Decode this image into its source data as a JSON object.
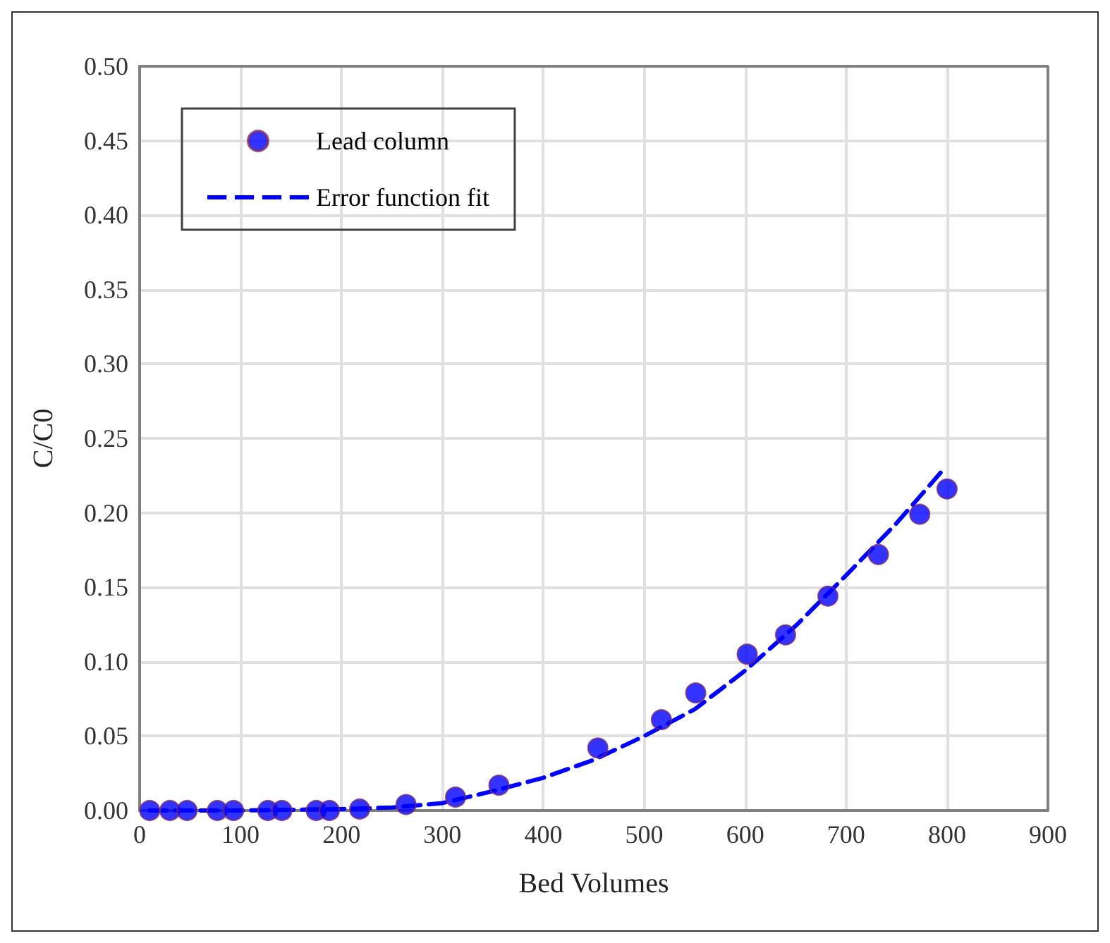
{
  "chart_data": {
    "type": "scatter",
    "xlabel": "Bed Volumes",
    "ylabel": "C/C0",
    "xlim": [
      0,
      900
    ],
    "xticks": [
      0,
      100,
      200,
      300,
      400,
      500,
      600,
      700,
      800,
      900
    ],
    "ylim": [
      0,
      0.5
    ],
    "yticks": [
      {
        "value": 0,
        "label": "0.00"
      },
      {
        "value": 0.05,
        "label": "0.05"
      },
      {
        "value": 0.1,
        "label": "0.10"
      },
      {
        "value": 0.15,
        "label": "0.15"
      },
      {
        "value": 0.2,
        "label": "0.20"
      },
      {
        "value": 0.25,
        "label": "0.25"
      },
      {
        "value": 0.3,
        "label": "0.30"
      },
      {
        "value": 0.35,
        "label": "0.35"
      },
      {
        "value": 0.4,
        "label": "0.40"
      },
      {
        "value": 0.45,
        "label": "0.45"
      },
      {
        "value": 0.5,
        "label": "0.50"
      }
    ],
    "grid": true,
    "legend": "top left",
    "series": [
      {
        "name": "Lead column",
        "color": "#0000ff",
        "marker": "circle",
        "x": [
          10,
          30,
          47,
          77,
          93,
          127,
          141,
          175,
          188,
          218,
          264,
          313,
          356,
          454,
          517,
          551,
          602,
          640,
          682,
          732,
          773,
          800
        ],
        "values": [
          0,
          0,
          0,
          0,
          0,
          0,
          0,
          0,
          0,
          0.001,
          0.004,
          0.009,
          0.017,
          0.042,
          0.061,
          0.079,
          0.105,
          0.118,
          0.144,
          0.172,
          0.199,
          0.216
        ]
      },
      {
        "name": "Error function fit",
        "type": "line",
        "color": "#0000ff",
        "line_style": "dashed",
        "marker": "none",
        "x": [
          10,
          100,
          200,
          250,
          300,
          350,
          400,
          450,
          500,
          550,
          600,
          650,
          700,
          750,
          795
        ],
        "values": [
          0,
          0,
          0.001,
          0.002,
          0.005,
          0.013,
          0.022,
          0.034,
          0.05,
          0.068,
          0.094,
          0.124,
          0.158,
          0.193,
          0.228
        ]
      }
    ]
  }
}
